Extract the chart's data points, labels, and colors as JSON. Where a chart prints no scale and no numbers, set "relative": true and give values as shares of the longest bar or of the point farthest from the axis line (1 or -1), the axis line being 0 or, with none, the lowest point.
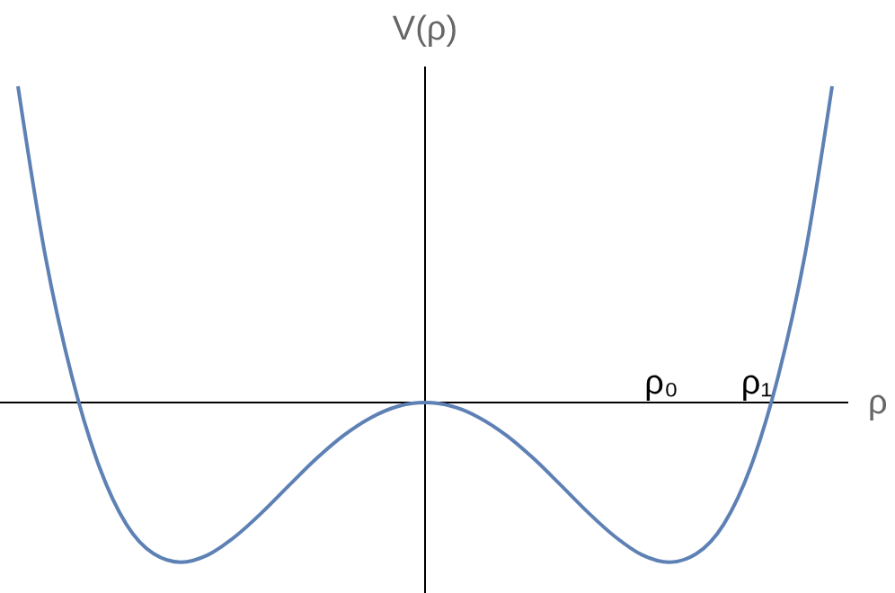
{
  "chart_data": {
    "type": "line",
    "relative": true,
    "xlabel": "ρ",
    "ylabel": "V(ρ)",
    "categories": [
      null,
      null,
      null,
      null,
      null,
      null,
      null,
      null,
      null,
      null,
      null,
      null,
      null,
      null,
      null,
      null,
      null,
      null,
      null,
      null,
      null,
      null,
      null,
      null,
      null,
      null,
      null,
      null,
      null,
      null,
      null
    ],
    "series": [
      {
        "color": "#5e81b5",
        "values": [
          1.0,
          0.467,
          0.078,
          -0.204,
          -0.386,
          -0.478,
          -0.505,
          -0.482,
          -0.424,
          -0.347,
          -0.261,
          -0.177,
          -0.104,
          -0.048,
          -0.012,
          0,
          -0.012,
          -0.048,
          -0.104,
          -0.177,
          -0.261,
          -0.347,
          -0.424,
          -0.482,
          -0.505,
          -0.478,
          -0.386,
          -0.204,
          0.078,
          0.467,
          1.0
        ]
      }
    ],
    "annotations": [
      "ρ₀",
      "ρ₁"
    ]
  }
}
